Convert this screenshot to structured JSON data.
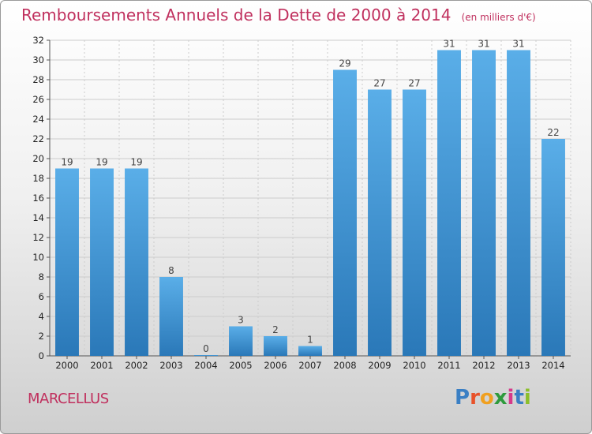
{
  "header": {
    "title": "Remboursements Annuels de la Dette de 2000 à 2014",
    "unit": "(en milliers d'€)"
  },
  "footer": {
    "town": "MARCELLUS",
    "logo_letters": [
      "P",
      "r",
      "o",
      "x",
      "i",
      "t",
      "i"
    ],
    "logo_colors": [
      "#3a7fc4",
      "#e8522a",
      "#f0a020",
      "#2e9a3c",
      "#d63a8a",
      "#3a7fc4",
      "#8cbf2a"
    ]
  },
  "chart_data": {
    "type": "bar",
    "title": "Remboursements Annuels de la Dette de 2000 à 2014",
    "categories": [
      "2000",
      "2001",
      "2002",
      "2003",
      "2004",
      "2005",
      "2006",
      "2007",
      "2008",
      "2009",
      "2010",
      "2011",
      "2012",
      "2013",
      "2014"
    ],
    "values": [
      19,
      19,
      19,
      8,
      0,
      3,
      2,
      1,
      29,
      27,
      27,
      31,
      31,
      31,
      22
    ],
    "ylim": [
      0,
      32
    ],
    "yticks": [
      0,
      2,
      4,
      6,
      8,
      10,
      12,
      14,
      16,
      18,
      20,
      22,
      24,
      26,
      28,
      30,
      32
    ],
    "grid": true,
    "colors": {
      "bar_top": "#5aaee8",
      "bar_bottom": "#2a78b8",
      "grid": "#cccccc"
    }
  }
}
